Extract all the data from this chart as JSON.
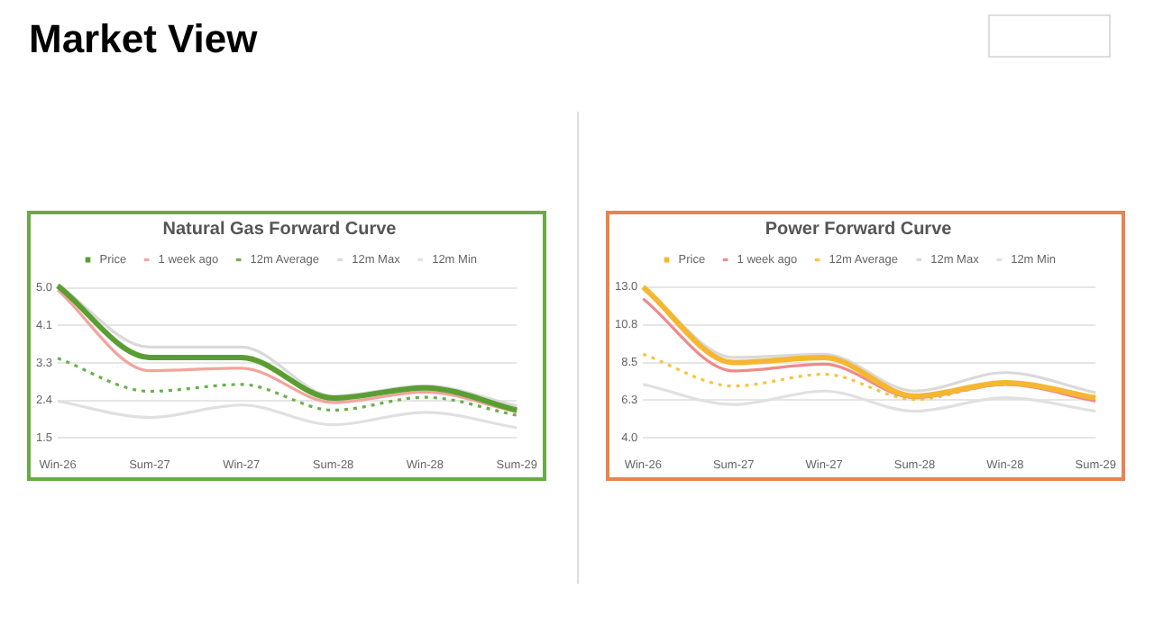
{
  "chart_data": [
    {
      "type": "line",
      "title": "Natural Gas Forward Curve",
      "annotations": [
        "Market View"
      ],
      "categories": [
        "Win-26",
        "Sum-27",
        "Win-27",
        "Sum-28",
        "Win-28",
        "Sum-29"
      ],
      "series": [
        {
          "name": "Price",
          "color": "#5a9e32",
          "values": [
            5.05,
            3.38,
            3.38,
            2.43,
            2.67,
            2.15
          ]
        },
        {
          "name": "1 week ago",
          "color": "#f4a39c",
          "values": [
            4.95,
            3.07,
            3.13,
            2.33,
            2.57,
            2.11
          ]
        },
        {
          "name": "12m Average",
          "color": "#6ab04c",
          "line_style": "dotted",
          "values": [
            3.36,
            2.59,
            2.75,
            2.15,
            2.45,
            2.03
          ]
        },
        {
          "name": "12m Max",
          "color": "#d9d9d9",
          "values": [
            5.08,
            3.62,
            3.62,
            2.48,
            2.72,
            2.25
          ]
        },
        {
          "name": "12m Min",
          "color": "#e0e0e0",
          "values": [
            2.36,
            1.98,
            2.27,
            1.81,
            2.1,
            1.74
          ]
        }
      ],
      "ylim": [
        1.5,
        5.1
      ],
      "yticks": [
        1.5,
        {
          "value": 2.375,
          "label": "2.4"
        },
        {
          "value": 3.25,
          "label": "3.3"
        },
        {
          "value": 4.125,
          "label": "4.1"
        },
        {
          "value": 5.0,
          "label": "5.0"
        }
      ],
      "grid": "y",
      "legend": "top",
      "marker": "none",
      "line_style": "solid"
    },
    {
      "type": "line",
      "title": "Power Forward Curve",
      "categories": [
        "Win-26",
        "Sum-27",
        "Win-27",
        "Sum-28",
        "Win-28",
        "Sum-29"
      ],
      "series": [
        {
          "name": "Price",
          "color": "#f5b731",
          "values": [
            13.0,
            8.5,
            8.8,
            6.5,
            7.3,
            6.4
          ]
        },
        {
          "name": "1 week ago",
          "color": "#f08a8a",
          "values": [
            12.3,
            8.0,
            8.4,
            6.4,
            7.2,
            6.2
          ]
        },
        {
          "name": "12m Average",
          "color": "#f5c542",
          "line_style": "dotted",
          "values": [
            9.0,
            7.1,
            7.8,
            6.3,
            7.2,
            6.3
          ]
        },
        {
          "name": "12m Max",
          "color": "#d9d9d9",
          "values": [
            13.0,
            8.8,
            9.0,
            6.8,
            7.9,
            6.7
          ]
        },
        {
          "name": "12m Min",
          "color": "#e0e0e0",
          "values": [
            7.2,
            6.0,
            6.8,
            5.6,
            6.4,
            5.6
          ]
        }
      ],
      "ylim": [
        4.0,
        13.2
      ],
      "yticks": [
        {
          "value": 4.0,
          "label": "4.0"
        },
        {
          "value": 6.25,
          "label": "6.3"
        },
        {
          "value": 8.5,
          "label": "8.5"
        },
        {
          "value": 10.75,
          "label": "10.8"
        },
        {
          "value": 13.0,
          "label": "13.0"
        }
      ],
      "grid": "y",
      "legend": "top",
      "marker": "none",
      "line_style": "solid"
    }
  ]
}
